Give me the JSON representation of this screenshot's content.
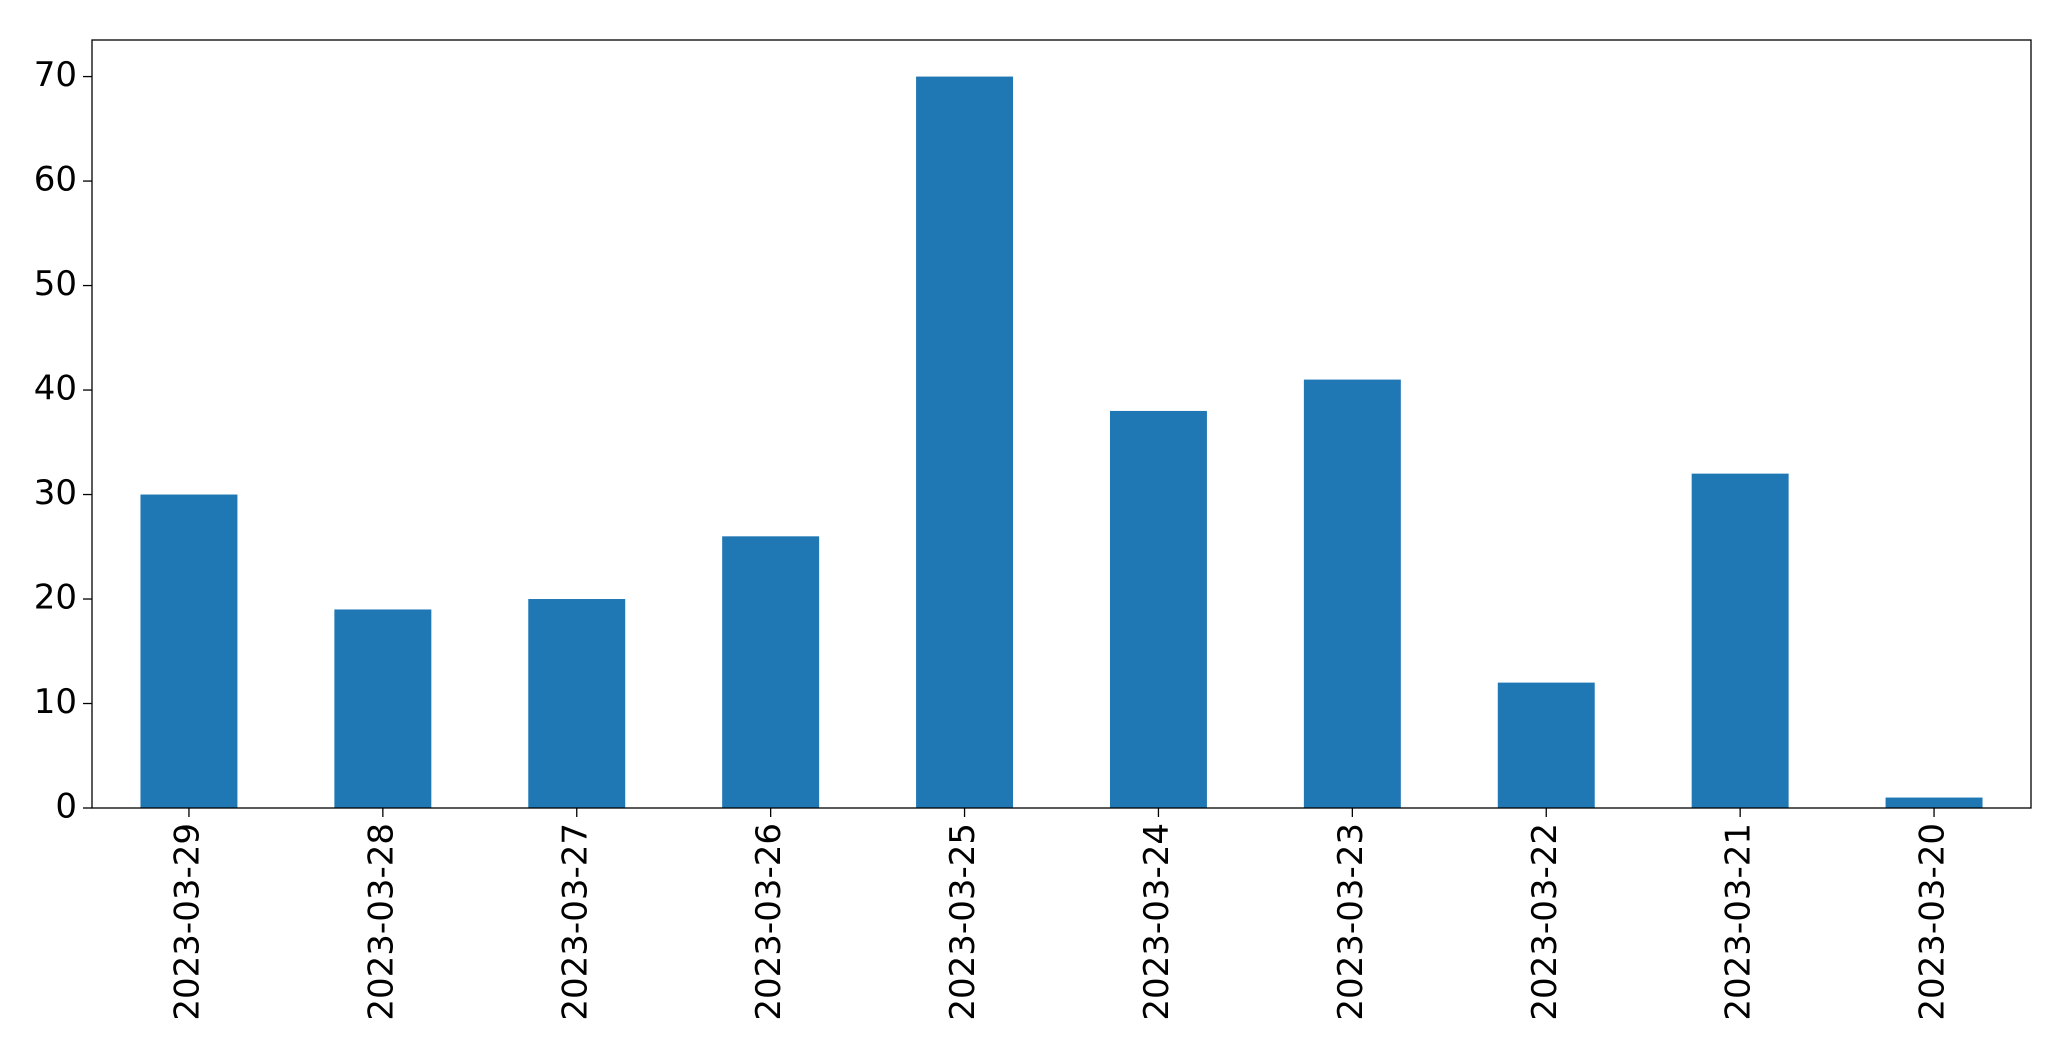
{
  "chart_data": {
    "type": "bar",
    "categories": [
      "2023-03-29",
      "2023-03-28",
      "2023-03-27",
      "2023-03-26",
      "2023-03-25",
      "2023-03-24",
      "2023-03-23",
      "2023-03-22",
      "2023-03-21",
      "2023-03-20"
    ],
    "values": [
      30,
      19,
      20,
      26,
      70,
      38,
      41,
      12,
      32,
      1
    ],
    "color": "#1f77b4",
    "ylim": [
      0,
      73.5
    ],
    "yticks": [
      0,
      10,
      20,
      30,
      40,
      50,
      60,
      70
    ],
    "grid": false
  }
}
